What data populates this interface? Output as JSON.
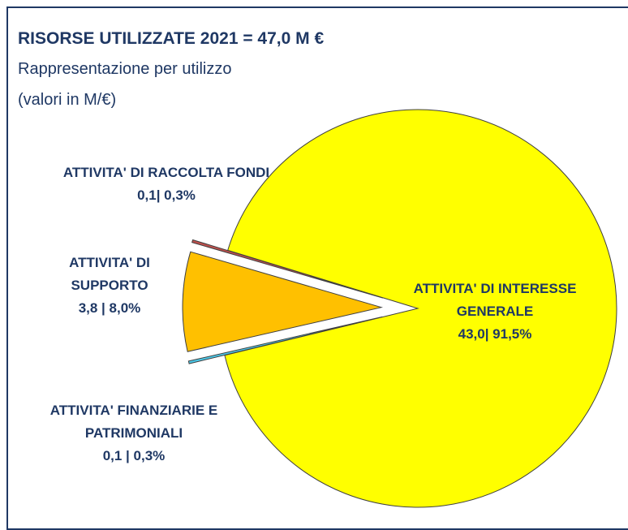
{
  "chart_data": {
    "type": "pie",
    "title": "RISORSE UTILIZZATE 2021 = 47,0 M €",
    "subtitle": "Rappresentazione per utilizzo",
    "note": "(valori in M/€)",
    "categories": [
      "ATTIVITA' DI INTERESSE GENERALE",
      "ATTIVITA' FINANZIARIE E PATRIMONIALI",
      "ATTIVITA' DI SUPPORTO",
      "ATTIVITA' DI RACCOLTA FONDI"
    ],
    "values": [
      43.0,
      0.1,
      3.8,
      0.1
    ],
    "value_labels": [
      "43,0| 91,5%",
      "0,1 | 0,3%",
      "3,8 | 8,0%",
      "0,1| 0,3%"
    ],
    "colors": [
      "#ffff00",
      "#4bc8e8",
      "#ffc000",
      "#c0504d"
    ]
  }
}
